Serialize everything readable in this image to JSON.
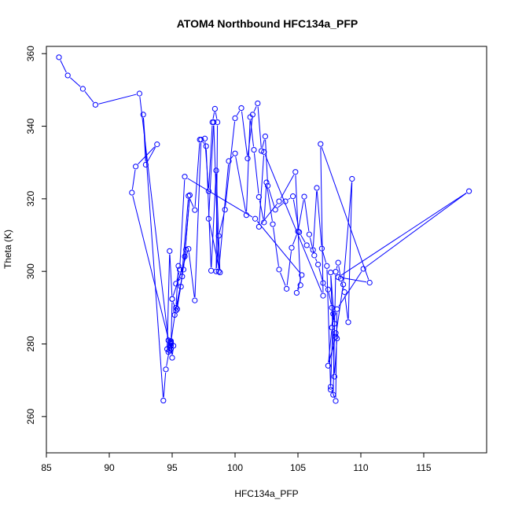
{
  "chart_data": {
    "type": "line",
    "title": "ATOM4 Northbound HFC134a_PFP",
    "xlabel": "HFC134a_PFP",
    "ylabel": "Theta (K)",
    "xlim": [
      85,
      120
    ],
    "ylim": [
      250,
      362
    ],
    "xticks": [
      85,
      90,
      95,
      100,
      105,
      110,
      115
    ],
    "yticks": [
      260,
      280,
      300,
      320,
      340,
      360
    ],
    "grid": false,
    "color": "#0000ff",
    "series": [
      {
        "x": [
          86.0,
          86.7,
          87.9,
          88.9,
          92.4,
          94.7,
          94.8,
          94.6,
          94.8,
          95.0,
          95.3,
          95.7,
          96.3,
          96.8,
          97.2,
          97.6,
          97.9,
          98.2,
          98.4,
          98.6,
          98.5,
          98.7,
          99.2,
          100.0,
          100.5,
          101.0,
          101.4,
          101.8,
          102.1,
          102.4,
          102.6,
          103.2,
          104.0,
          104.6,
          105.1,
          105.7,
          106.2,
          106.5,
          106.9,
          107.3,
          107.6,
          107.8,
          108.0,
          108.2,
          108.4,
          108.7,
          109.0,
          109.3,
          108.6,
          108.0,
          107.4,
          107.7,
          107.8,
          107.6,
          108.0,
          108.1,
          110.2,
          118.6,
          108.2,
          110.7,
          106.8,
          107.0,
          102.3,
          101.9,
          103.5,
          104.8,
          105.2,
          104.9,
          105.3,
          101.6,
          96.0,
          95.6,
          95.3,
          95.8,
          95.2,
          95.4,
          96.1,
          96.0,
          96.4,
          95.9,
          95.5,
          95.3,
          94.9,
          95.0,
          95.1,
          94.8,
          94.9,
          94.9,
          94.7,
          94.9,
          94.8,
          94.9,
          94.5,
          94.3,
          92.7,
          92.9,
          93.8,
          92.1,
          91.8,
          94.9,
          95.0,
          96.3,
          96.8,
          97.3,
          97.7,
          98.1,
          98.5,
          98.8,
          97.9,
          98.3,
          98.7,
          99.5,
          100.0,
          100.9,
          101.2,
          101.5,
          101.9,
          102.3,
          102.5,
          103.0,
          103.5,
          104.1,
          104.5,
          105.0,
          105.5,
          105.9,
          106.3,
          106.6,
          107.0,
          107.4,
          107.7,
          107.9,
          107.6,
          107.9,
          108.1,
          108.0,
          107.7
        ],
        "y": [
          359.0,
          354.0,
          350.3,
          345.9,
          349.0,
          281.0,
          279.5,
          278.6,
          305.6,
          292.4,
          289.2,
          295.8,
          320.8,
          316.9,
          336.3,
          336.6,
          322.1,
          341.1,
          344.8,
          341.1,
          300.0,
          309.8,
          317.0,
          342.2,
          345.0,
          331.1,
          343.2,
          346.3,
          333.2,
          337.2,
          323.6,
          317.0,
          319.3,
          320.7,
          310.8,
          307.2,
          305.9,
          323.0,
          306.3,
          301.5,
          267.4,
          266.0,
          299.9,
          302.4,
          298.0,
          294.3,
          286.0,
          325.5,
          296.4,
          282.0,
          274.0,
          284.5,
          288.3,
          268.2,
          264.3,
          289.6,
          300.7,
          322.1,
          298.4,
          296.9,
          335.1,
          293.3,
          332.9,
          312.3,
          319.3,
          327.4,
          296.2,
          294.1,
          299.0,
          314.5,
          326.1,
          300.5,
          296.6,
          298.6,
          288.0,
          289.6,
          306.0,
          304.1,
          321.0,
          300.5,
          301.5,
          290.0,
          280.5,
          276.2,
          279.5,
          278.2,
          279.5,
          280.0,
          277.8,
          280.3,
          279.0,
          280.8,
          273.0,
          264.4,
          343.2,
          329.4,
          335.0,
          328.9,
          321.7,
          278.6,
          292.4,
          306.2,
          292.0,
          336.3,
          334.5,
          300.2,
          327.8,
          299.7,
          314.5,
          341.1,
          300.0,
          330.4,
          332.5,
          315.5,
          342.5,
          333.5,
          320.5,
          313.5,
          324.5,
          313.0,
          300.5,
          295.2,
          306.5,
          311.0,
          320.6,
          310.2,
          304.4,
          301.9,
          296.8,
          295.0,
          290.0,
          285.6,
          299.7,
          271.0,
          281.5,
          283.0,
          284.5
        ]
      }
    ]
  }
}
